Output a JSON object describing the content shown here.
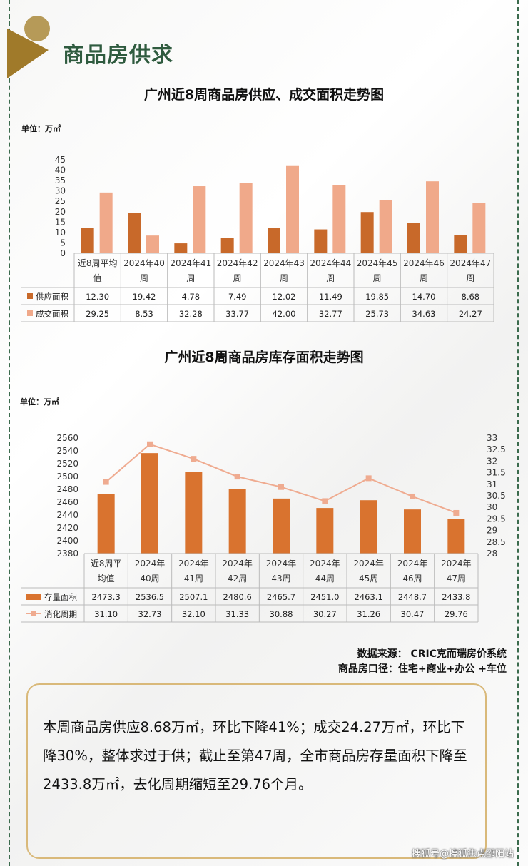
{
  "header": {
    "title": "商品房供求"
  },
  "chart1": {
    "title": "广州近8周商品房供应、成交面积走势图",
    "unit": "单位：万㎡"
  },
  "chart2": {
    "title": "广州近8周商品房库存面积走势图",
    "unit": "单位：万㎡"
  },
  "chart_data": [
    {
      "type": "bar",
      "title": "广州近8周商品房供应、成交面积走势图",
      "ylim": [
        0,
        45
      ],
      "yticks": [
        "0",
        "5",
        "10",
        "15",
        "20",
        "25",
        "30",
        "35",
        "40",
        "45"
      ],
      "categories": [
        [
          "近8周平均",
          "值"
        ],
        [
          "2024年40",
          "周"
        ],
        [
          "2024年41",
          "周"
        ],
        [
          "2024年42",
          "周"
        ],
        [
          "2024年43",
          "周"
        ],
        [
          "2024年44",
          "周"
        ],
        [
          "2024年45",
          "周"
        ],
        [
          "2024年46",
          "周"
        ],
        [
          "2024年47",
          "周"
        ]
      ],
      "series": [
        {
          "name": "供应面积",
          "color": "#c8692a",
          "values": [
            12.3,
            19.42,
            4.78,
            7.49,
            12.02,
            11.49,
            19.85,
            14.7,
            8.68
          ],
          "labels": [
            "12.30",
            "19.42",
            "4.78",
            "7.49",
            "12.02",
            "11.49",
            "19.85",
            "14.70",
            "8.68"
          ]
        },
        {
          "name": "成交面积",
          "color": "#f0a98a",
          "values": [
            29.25,
            8.53,
            32.28,
            33.77,
            42.0,
            32.77,
            25.73,
            34.63,
            24.27
          ],
          "labels": [
            "29.25",
            "8.53",
            "32.28",
            "33.77",
            "42.00",
            "32.77",
            "25.73",
            "34.63",
            "24.27"
          ]
        }
      ]
    },
    {
      "type": "bar+line",
      "title": "广州近8周商品房库存面积走势图",
      "ylim": [
        2380,
        2560
      ],
      "yticks": [
        "2380",
        "2400",
        "2420",
        "2440",
        "2460",
        "2480",
        "2500",
        "2520",
        "2540",
        "2560"
      ],
      "y2lim": [
        28,
        33
      ],
      "y2ticks": [
        "28",
        "28.5",
        "29",
        "29.5",
        "30",
        "30.5",
        "31",
        "31.5",
        "32",
        "32.5",
        "33"
      ],
      "categories": [
        [
          "近8周平",
          "均值"
        ],
        [
          "2024年",
          "40周"
        ],
        [
          "2024年",
          "41周"
        ],
        [
          "2024年",
          "42周"
        ],
        [
          "2024年",
          "43周"
        ],
        [
          "2024年",
          "44周"
        ],
        [
          "2024年",
          "45周"
        ],
        [
          "2024年",
          "46周"
        ],
        [
          "2024年",
          "47周"
        ]
      ],
      "series": [
        {
          "name": "存量面积",
          "color": "#d9732f",
          "values": [
            2473.3,
            2536.5,
            2507.1,
            2480.6,
            2465.7,
            2451.0,
            2463.1,
            2448.7,
            2433.8
          ],
          "labels": [
            "2473.3",
            "2536.5",
            "2507.1",
            "2480.6",
            "2465.7",
            "2451.0",
            "2463.1",
            "2448.7",
            "2433.8"
          ]
        },
        {
          "name": "消化周期",
          "color": "#efab90",
          "axis": "right",
          "values": [
            31.1,
            32.73,
            32.1,
            31.33,
            30.88,
            30.27,
            31.26,
            30.47,
            29.76
          ],
          "labels": [
            "31.10",
            "32.73",
            "32.10",
            "31.33",
            "30.88",
            "30.27",
            "31.26",
            "30.47",
            "29.76"
          ]
        }
      ]
    }
  ],
  "source": {
    "line1": "数据来源：  CRIC克而瑞房价系统",
    "line2": "商品房口径：住宅+商业+办公 +车位"
  },
  "summary": "本周商品房供应8.68万㎡，环比下降41%；成交24.27万㎡，环比下降30%，整体求过于供；截止至第47周，全市商品房存量面积下降至2433.8万㎡，去化周期缩短至29.76个月。",
  "watermark": "搜狐号@搜狐焦点邵阳站"
}
